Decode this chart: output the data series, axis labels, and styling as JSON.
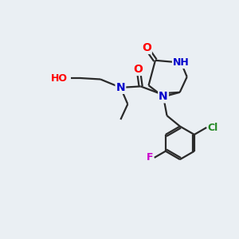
{
  "bg_color": "#eaeff3",
  "line_color": "#2a2a2a",
  "bond_width": 1.6,
  "atom_colors": {
    "O": "#ff0000",
    "N": "#0000cc",
    "Cl": "#228822",
    "F": "#cc00cc",
    "H": "#777777",
    "C": "#2a2a2a"
  },
  "font_size": 10,
  "small_font_size": 9
}
